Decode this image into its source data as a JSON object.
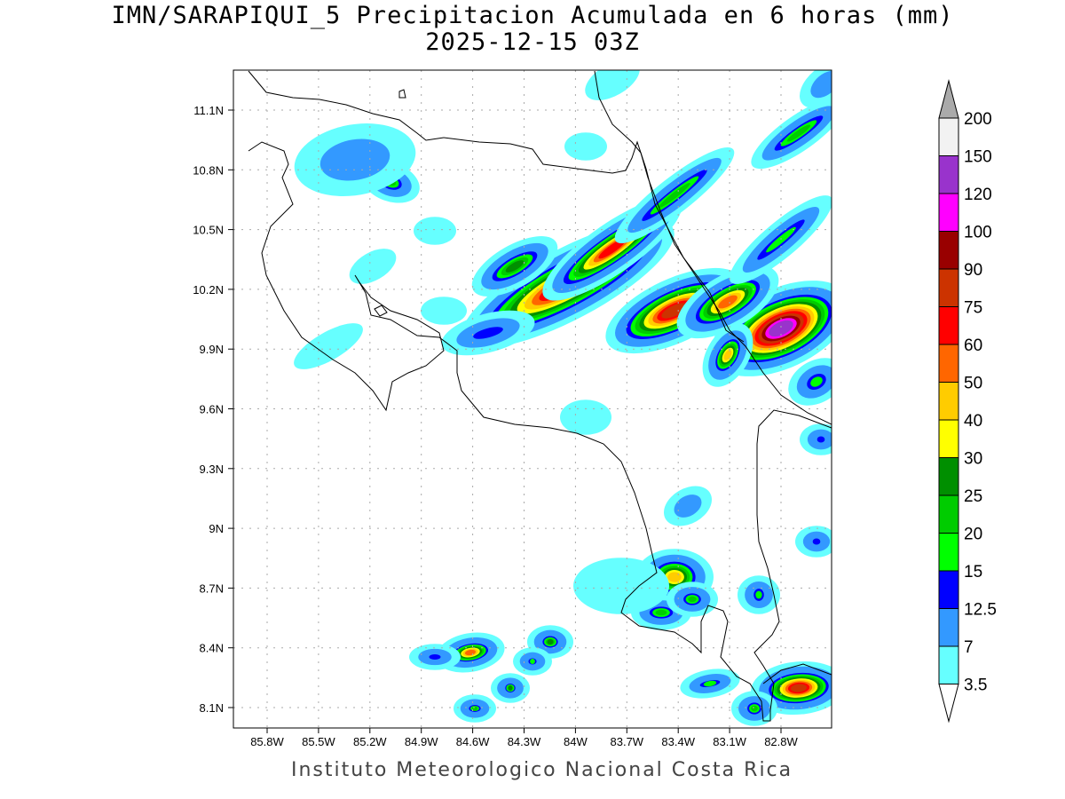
{
  "title": "IMN/SARAPIQUI_5 Precipitacion Acumulada en 6 horas (mm)",
  "subtitle": "2025-12-15 03Z",
  "footer": "Instituto Meteorologico Nacional Costa Rica",
  "map": {
    "lon_ticks": [
      "85.8W",
      "85.5W",
      "85.2W",
      "84.9W",
      "84.6W",
      "84.3W",
      "84W",
      "83.7W",
      "83.4W",
      "83.1W",
      "82.8W"
    ],
    "lat_ticks": [
      "11.1N",
      "10.8N",
      "10.5N",
      "10.2N",
      "9.9N",
      "9.6N",
      "9.3N",
      "9N",
      "8.7N",
      "8.4N",
      "8.1N"
    ]
  },
  "colorbar": {
    "labels": [
      "3.5",
      "7",
      "12.5",
      "15",
      "20",
      "25",
      "30",
      "40",
      "50",
      "60",
      "75",
      "90",
      "100",
      "120",
      "150",
      "200"
    ],
    "colors": [
      "#66ffff",
      "#3399ff",
      "#0000ff",
      "#00ff00",
      "#00cc00",
      "#008f00",
      "#ffff00",
      "#ffcc00",
      "#ff6600",
      "#ff0000",
      "#cc3300",
      "#990000",
      "#ff00ff",
      "#9933cc",
      "#f2f2f2"
    ],
    "over_color": "#aaaaaa",
    "under_color": "#ffffff"
  }
}
